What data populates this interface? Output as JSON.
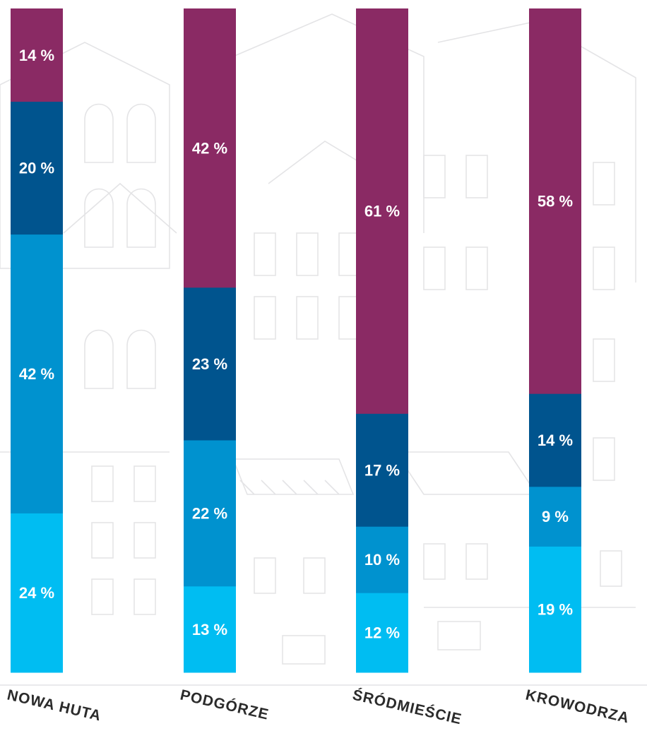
{
  "chart_data": {
    "type": "bar",
    "stacked": true,
    "orientation": "vertical",
    "categories": [
      "NOWA HUTA",
      "PODGÓRZE",
      "ŚRÓDMIEŚCIE",
      "KROWODRZA"
    ],
    "series": [
      {
        "color": "#00bdf2",
        "values": [
          24,
          13,
          12,
          19
        ]
      },
      {
        "color": "#0092cf",
        "values": [
          42,
          22,
          10,
          9
        ]
      },
      {
        "color": "#00548e",
        "values": [
          20,
          23,
          17,
          14
        ]
      },
      {
        "color": "#8a2a64",
        "values": [
          14,
          42,
          61,
          58
        ]
      }
    ],
    "data_labels": [
      [
        "24 %",
        "13 %",
        "12 %",
        "19 %"
      ],
      [
        "42 %",
        "22 %",
        "10 %",
        "9 %"
      ],
      [
        "20 %",
        "23 %",
        "17 %",
        "14 %"
      ],
      [
        "14 %",
        "42 %",
        "61 %",
        "58 %"
      ]
    ],
    "value_unit": "%",
    "title": "",
    "xlabel": "",
    "ylabel": "",
    "grid": false,
    "legend": "none",
    "background": "faint line drawing of city buildings"
  }
}
